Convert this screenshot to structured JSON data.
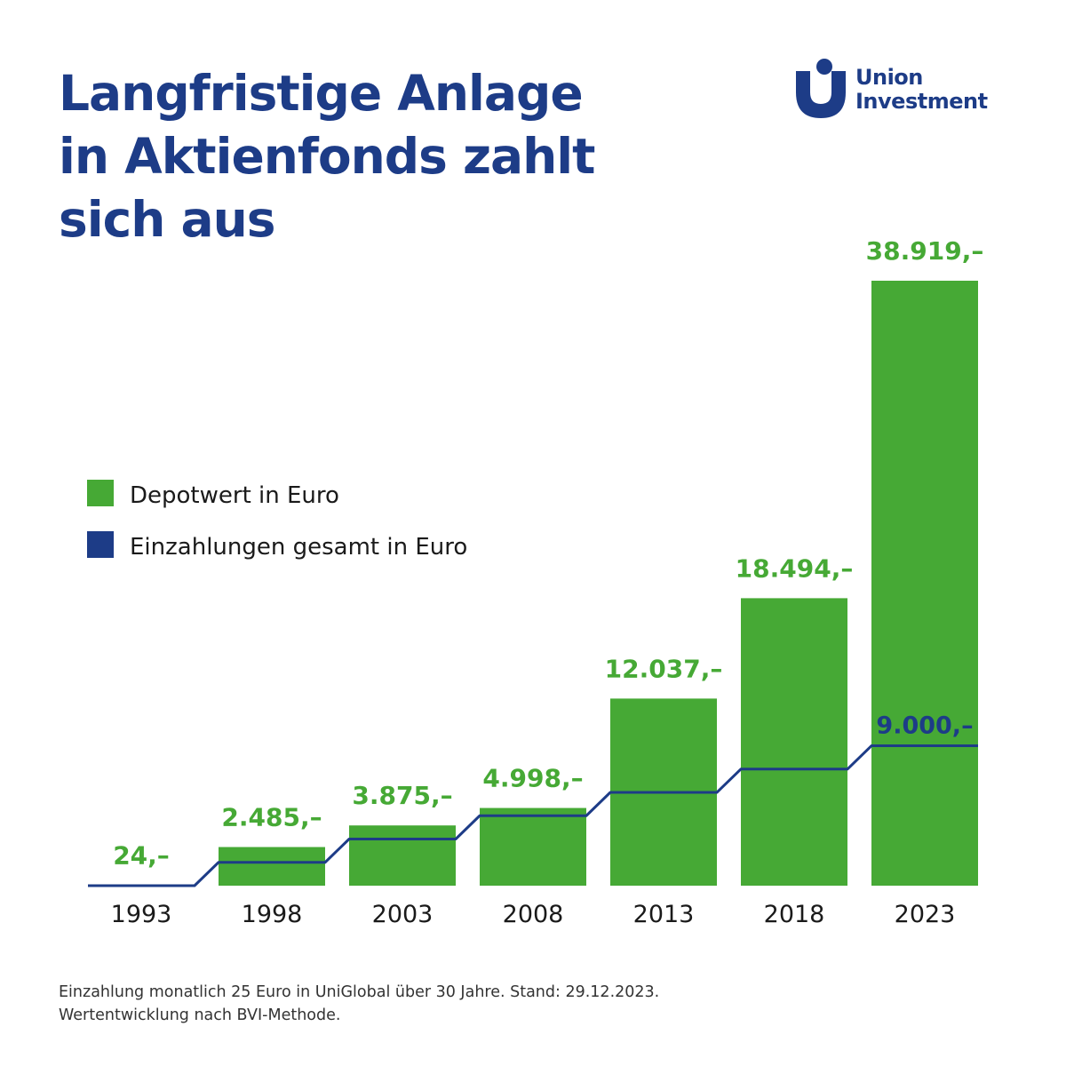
{
  "title_lines": [
    "Langfristige Anlage",
    "in Aktienfonds zahlt",
    "sich aus"
  ],
  "brand": {
    "name_lines": [
      "Union",
      "Investment"
    ],
    "icon": "union-investment-logo-icon",
    "color": "#1d3c87"
  },
  "colors": {
    "bar": "#46a935",
    "line": "#1d3c87",
    "title": "#1d3c87",
    "label_green": "#46a935",
    "axis_text": "#1a1a1a"
  },
  "chart_data": {
    "type": "bar",
    "categories": [
      "1993",
      "1998",
      "2003",
      "2008",
      "2013",
      "2018",
      "2023"
    ],
    "series": [
      {
        "name": "Depotwert in Euro",
        "type": "bar",
        "values": [
          24,
          2485,
          3875,
          4998,
          12037,
          18494,
          38919
        ]
      },
      {
        "name": "Einzahlungen gesamt in Euro",
        "type": "step-line",
        "values": [
          0,
          1500,
          3000,
          4500,
          6000,
          7500,
          9000
        ]
      }
    ],
    "bar_labels": [
      "24,–",
      "2.485,–",
      "3.875,–",
      "4.998,–",
      "12.037,–",
      "18.494,–",
      "38.919,–"
    ],
    "line_labels": [
      "",
      "",
      "",
      "",
      "",
      "",
      "9.000,–"
    ],
    "legend": [
      {
        "label": "Depotwert in Euro",
        "color": "#46a935"
      },
      {
        "label": "Einzahlungen gesamt in Euro",
        "color": "#1d3c87"
      }
    ],
    "ylim": [
      0,
      38919
    ],
    "xlabel": "",
    "ylabel": ""
  },
  "footnote_lines": [
    "Einzahlung monatlich 25 Euro in UniGlobal über 30 Jahre. Stand: 29.12.2023.",
    "Wertentwicklung nach BVI-Methode."
  ]
}
